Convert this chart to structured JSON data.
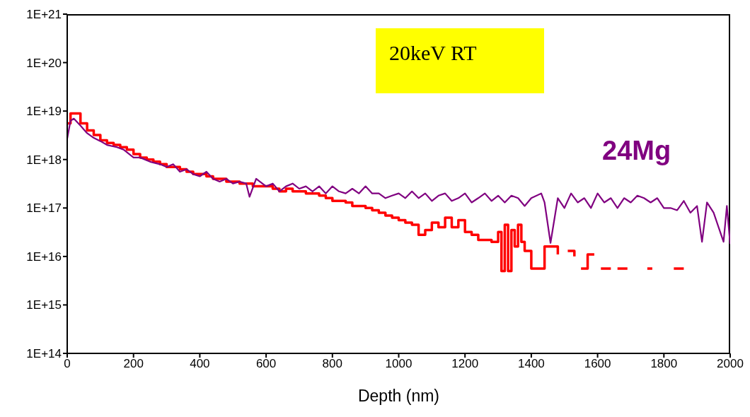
{
  "chart_data": {
    "type": "line",
    "xlabel": "Depth (nm)",
    "annotations": [
      "20keV RT"
    ],
    "log": "y",
    "grid": false,
    "legend": false,
    "marker": "none",
    "line_style": "solid",
    "xlim": [
      0,
      2000
    ],
    "xticks": [
      0,
      200,
      400,
      600,
      800,
      1000,
      1200,
      1400,
      1600,
      1800,
      2000
    ],
    "ylim": [
      100000000000000.0,
      1e+21
    ],
    "yticks": [
      {
        "value": 100000000000000.0,
        "label": "1E+14"
      },
      {
        "value": 1000000000000000.0,
        "label": "1E+15"
      },
      {
        "value": 1e+16,
        "label": "1E+16"
      },
      {
        "value": 1e+17,
        "label": "1E+17"
      },
      {
        "value": 1e+18,
        "label": "1E+18"
      },
      {
        "value": 1e+19,
        "label": "1E+19"
      },
      {
        "value": 1e+20,
        "label": "1E+20"
      },
      {
        "value": 1e+21,
        "label": "1E+21"
      }
    ],
    "series": [
      {
        "type": "step",
        "color": "#ff0000",
        "x": [
          0,
          10,
          20,
          40,
          60,
          80,
          100,
          120,
          140,
          160,
          180,
          200,
          220,
          240,
          260,
          280,
          300,
          320,
          340,
          360,
          380,
          400,
          420,
          440,
          460,
          480,
          500,
          520,
          540,
          560,
          580,
          600,
          620,
          640,
          660,
          680,
          700,
          720,
          740,
          760,
          780,
          800,
          820,
          840,
          860,
          880,
          900,
          920,
          940,
          960,
          980,
          1000,
          1020,
          1040,
          1060,
          1080,
          1100,
          1120,
          1140,
          1160,
          1180,
          1200,
          1220,
          1240,
          1260,
          1280,
          1300,
          1310,
          1320,
          1330,
          1340,
          1350,
          1360,
          1370,
          1380,
          1400,
          1420,
          1440,
          1460,
          1480,
          1500,
          1510,
          1530,
          1545,
          1550,
          1560,
          1570,
          1590,
          1600,
          1610,
          1640,
          1650,
          1660,
          1690,
          1700,
          1750,
          1765,
          1780,
          1830,
          1860
        ],
        "values": [
          5.6e+18,
          8.9e+18,
          8.9e+18,
          5.6e+18,
          4e+18,
          3.2e+18,
          2.5e+18,
          2.2e+18,
          2e+18,
          1.8e+18,
          1.6e+18,
          1.3e+18,
          1.1e+18,
          1e+18,
          9e+17,
          8e+17,
          7e+17,
          7e+17,
          6.3e+17,
          5.6e+17,
          5e+17,
          5e+17,
          4.5e+17,
          4e+17,
          4e+17,
          3.5e+17,
          3.5e+17,
          3.2e+17,
          3.2e+17,
          2.8e+17,
          2.8e+17,
          2.8e+17,
          2.5e+17,
          2.2e+17,
          2.5e+17,
          2.2e+17,
          2.2e+17,
          2e+17,
          2e+17,
          1.8e+17,
          1.6e+17,
          1.4e+17,
          1.4e+17,
          1.3e+17,
          1.1e+17,
          1.1e+17,
          1e+17,
          9e+16,
          8e+16,
          7e+16,
          6.3e+16,
          5.6e+16,
          5e+16,
          4.5e+16,
          2.8e+16,
          3.5e+16,
          5e+16,
          4e+16,
          6.3e+16,
          4e+16,
          5.6e+16,
          3.2e+16,
          2.8e+16,
          2.2e+16,
          2.2e+16,
          2e+16,
          3.2e+16,
          5000000000000000.0,
          4.5e+16,
          5000000000000000.0,
          3.5e+16,
          1.6e+16,
          4.5e+16,
          2e+16,
          1.3e+16,
          5600000000000000.0,
          5600000000000000.0,
          1.6e+16,
          1.6e+16,
          1.1e+16,
          null,
          1.3e+16,
          1e+16,
          null,
          5600000000000000.0,
          5600000000000000.0,
          1.1e+16,
          1.1e+16,
          null,
          5600000000000000.0,
          5600000000000000.0,
          null,
          5600000000000000.0,
          5600000000000000.0,
          null,
          5600000000000000.0,
          5600000000000000.0,
          null,
          5600000000000000.0,
          5600000000000000.0
        ]
      },
      {
        "name": "24Mg",
        "color": "#800080",
        "x": [
          0,
          10,
          20,
          40,
          60,
          80,
          100,
          120,
          150,
          170,
          200,
          220,
          250,
          280,
          300,
          320,
          340,
          360,
          380,
          400,
          420,
          440,
          460,
          480,
          500,
          520,
          540,
          550,
          570,
          600,
          620,
          640,
          660,
          680,
          700,
          720,
          740,
          760,
          780,
          800,
          820,
          840,
          860,
          880,
          900,
          920,
          940,
          960,
          980,
          1000,
          1020,
          1040,
          1060,
          1080,
          1100,
          1120,
          1140,
          1160,
          1180,
          1200,
          1220,
          1240,
          1260,
          1280,
          1300,
          1320,
          1340,
          1360,
          1380,
          1400,
          1430,
          1440,
          1458,
          1480,
          1500,
          1520,
          1540,
          1560,
          1580,
          1600,
          1620,
          1640,
          1660,
          1680,
          1700,
          1720,
          1740,
          1760,
          1780,
          1800,
          1820,
          1840,
          1860,
          1880,
          1900,
          1915,
          1930,
          1950,
          1980,
          1990,
          2000
        ],
        "values": [
          2.7e+18,
          6.3e+18,
          7e+18,
          5e+18,
          3.5e+18,
          2.8e+18,
          2.4e+18,
          2e+18,
          1.8e+18,
          1.6e+18,
          1.1e+18,
          1.1e+18,
          9e+17,
          8e+17,
          7e+17,
          8e+17,
          5.6e+17,
          6.3e+17,
          5e+17,
          4.5e+17,
          5.6e+17,
          4e+17,
          3.5e+17,
          4e+17,
          3.2e+17,
          3.5e+17,
          3.2e+17,
          1.7e+17,
          4e+17,
          2.8e+17,
          3.2e+17,
          2.2e+17,
          2.8e+17,
          3.2e+17,
          2.5e+17,
          2.8e+17,
          2.2e+17,
          2.8e+17,
          2e+17,
          2.8e+17,
          2.2e+17,
          2e+17,
          2.5e+17,
          2e+17,
          2.8e+17,
          2e+17,
          2e+17,
          1.6e+17,
          1.8e+17,
          2e+17,
          1.6e+17,
          2.2e+17,
          1.6e+17,
          2e+17,
          1.4e+17,
          1.8e+17,
          2e+17,
          1.4e+17,
          1.6e+17,
          2e+17,
          1.3e+17,
          1.6e+17,
          2e+17,
          1.4e+17,
          1.8e+17,
          1.3e+17,
          1.8e+17,
          1.6e+17,
          1.1e+17,
          1.6e+17,
          2e+17,
          1.3e+17,
          1.9e+16,
          1.6e+17,
          1e+17,
          2e+17,
          1.3e+17,
          1.6e+17,
          1e+17,
          2e+17,
          1.3e+17,
          1.6e+17,
          1e+17,
          1.6e+17,
          1.3e+17,
          1.8e+17,
          1.6e+17,
          1.3e+17,
          1.6e+17,
          1e+17,
          1e+17,
          9e+16,
          1.4e+17,
          8e+16,
          1.1e+17,
          2e+16,
          1.3e+17,
          8e+16,
          2e+16,
          1.1e+17,
          1.8e+16
        ]
      }
    ]
  }
}
